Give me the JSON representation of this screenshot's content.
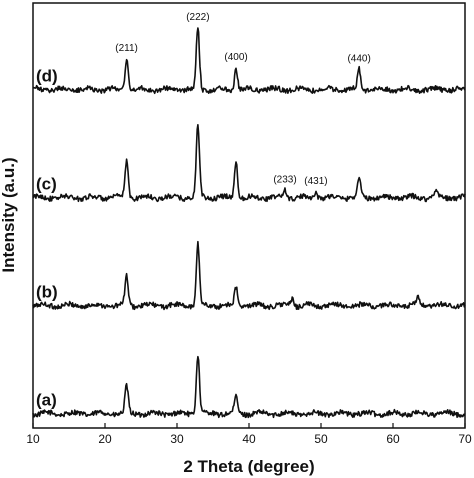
{
  "chart_data": {
    "type": "line",
    "xlabel": "2 Theta (degree)",
    "ylabel": "Intensity (a.u.)",
    "xlim": [
      10,
      70
    ],
    "x_ticks": [
      10,
      20,
      30,
      40,
      50,
      60,
      70
    ],
    "y_ticks_shown": false,
    "grid": false,
    "legend": "none",
    "series": [
      {
        "name": "(a)",
        "baseline": 0,
        "peaks": [
          {
            "x": 23.0,
            "height": 0.75
          },
          {
            "x": 32.9,
            "height": 1.65
          },
          {
            "x": 38.2,
            "height": 0.45
          }
        ]
      },
      {
        "name": "(b)",
        "baseline": 3,
        "peaks": [
          {
            "x": 23.0,
            "height": 0.8
          },
          {
            "x": 32.9,
            "height": 1.7
          },
          {
            "x": 38.2,
            "height": 0.5
          },
          {
            "x": 46.0,
            "height": 0.2
          },
          {
            "x": 63.5,
            "height": 0.2
          }
        ]
      },
      {
        "name": "(c)",
        "baseline": 6,
        "peaks": [
          {
            "x": 23.0,
            "height": 1.05
          },
          {
            "x": 32.9,
            "height": 2.0
          },
          {
            "x": 38.2,
            "height": 1.0
          },
          {
            "x": 45.0,
            "height": 0.2
          },
          {
            "x": 49.3,
            "height": 0.15
          },
          {
            "x": 55.3,
            "height": 0.55
          },
          {
            "x": 66.0,
            "height": 0.2
          }
        ]
      },
      {
        "name": "(d)",
        "baseline": 9,
        "peaks": [
          {
            "x": 23.0,
            "height": 0.85
          },
          {
            "x": 32.9,
            "height": 1.7
          },
          {
            "x": 38.2,
            "height": 0.6
          },
          {
            "x": 55.3,
            "height": 0.55
          }
        ]
      }
    ],
    "annotations": [
      {
        "text": "(211)",
        "x": 23.0,
        "series": "(d)"
      },
      {
        "text": "(222)",
        "x": 32.9,
        "series": "(d)"
      },
      {
        "text": "(400)",
        "x": 38.2,
        "series": "(d)"
      },
      {
        "text": "(440)",
        "x": 55.3,
        "series": "(d)"
      },
      {
        "text": "(233)",
        "x": 45.0,
        "series": "(c)"
      },
      {
        "text": "(431)",
        "x": 49.3,
        "series": "(c)"
      }
    ]
  }
}
